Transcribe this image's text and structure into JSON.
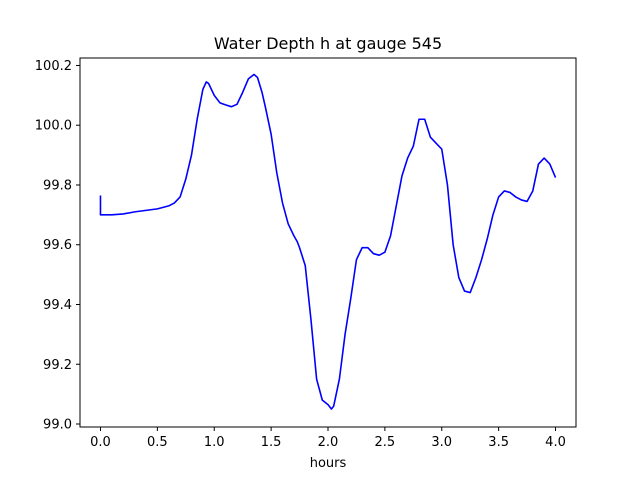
{
  "chart_data": {
    "type": "line",
    "title": "Water Depth h at gauge 545",
    "xlabel": "hours",
    "ylabel": "",
    "xlim": [
      -0.18,
      4.18
    ],
    "ylim": [
      98.99,
      100.225
    ],
    "xticks": [
      0.0,
      0.5,
      1.0,
      1.5,
      2.0,
      2.5,
      3.0,
      3.5,
      4.0
    ],
    "xtick_labels": [
      "0.0",
      "0.5",
      "1.0",
      "1.5",
      "2.0",
      "2.5",
      "3.0",
      "3.5",
      "4.0"
    ],
    "yticks": [
      99.0,
      99.2,
      99.4,
      99.6,
      99.8,
      100.0,
      100.2
    ],
    "ytick_labels": [
      "99.0",
      "99.2",
      "99.4",
      "99.6",
      "99.8",
      "100.0",
      "100.2"
    ],
    "grid": false,
    "legend": "none",
    "series": [
      {
        "color": "#0000ff",
        "x": [
          0.0,
          0.0,
          0.1,
          0.2,
          0.3,
          0.4,
          0.5,
          0.6,
          0.65,
          0.7,
          0.75,
          0.8,
          0.85,
          0.9,
          0.93,
          0.95,
          1.0,
          1.05,
          1.1,
          1.15,
          1.2,
          1.25,
          1.3,
          1.35,
          1.38,
          1.42,
          1.45,
          1.5,
          1.55,
          1.6,
          1.65,
          1.7,
          1.73,
          1.75,
          1.8,
          1.85,
          1.9,
          1.95,
          2.0,
          2.03,
          2.05,
          2.1,
          2.15,
          2.2,
          2.25,
          2.3,
          2.35,
          2.4,
          2.45,
          2.5,
          2.55,
          2.6,
          2.65,
          2.7,
          2.75,
          2.8,
          2.85,
          2.9,
          2.95,
          3.0,
          3.05,
          3.1,
          3.15,
          3.2,
          3.25,
          3.3,
          3.35,
          3.4,
          3.45,
          3.5,
          3.55,
          3.6,
          3.65,
          3.7,
          3.75,
          3.8,
          3.85,
          3.9,
          3.95,
          4.0
        ],
        "y": [
          99.765,
          99.7,
          99.7,
          99.703,
          99.71,
          99.715,
          99.72,
          99.73,
          99.74,
          99.76,
          99.82,
          99.9,
          100.02,
          100.12,
          100.145,
          100.14,
          100.1,
          100.075,
          100.068,
          100.062,
          100.07,
          100.11,
          100.155,
          100.17,
          100.16,
          100.11,
          100.06,
          99.97,
          99.84,
          99.74,
          99.67,
          99.63,
          99.61,
          99.59,
          99.53,
          99.35,
          99.15,
          99.08,
          99.065,
          99.05,
          99.06,
          99.15,
          99.3,
          99.42,
          99.55,
          99.59,
          99.59,
          99.57,
          99.565,
          99.575,
          99.63,
          99.73,
          99.83,
          99.89,
          99.93,
          100.02,
          100.02,
          99.96,
          99.94,
          99.92,
          99.8,
          99.6,
          99.49,
          99.445,
          99.44,
          99.49,
          99.55,
          99.62,
          99.7,
          99.76,
          99.78,
          99.775,
          99.76,
          99.75,
          99.745,
          99.78,
          99.87,
          99.89,
          99.87,
          99.825
        ]
      }
    ]
  }
}
